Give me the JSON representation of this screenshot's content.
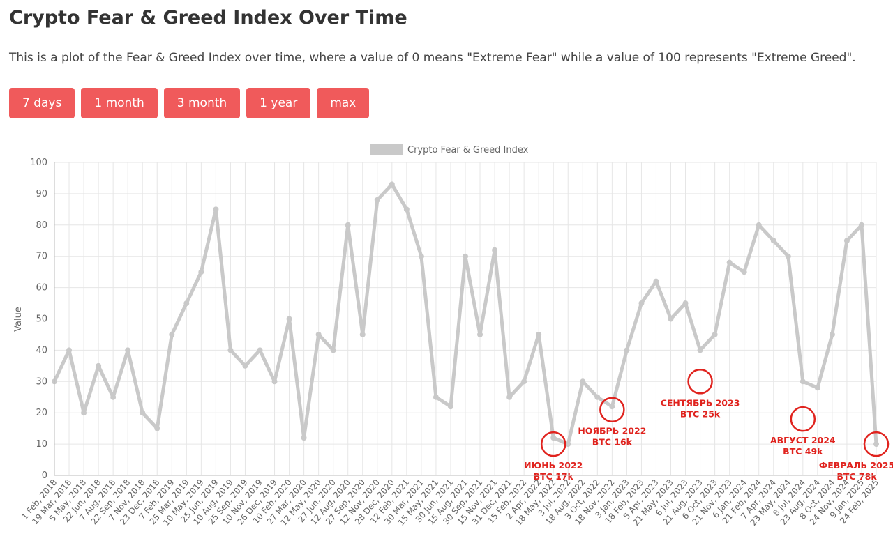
{
  "header": {
    "title": "Crypto Fear & Greed Index Over Time",
    "description": "This is a plot of the Fear & Greed Index over time, where a value of 0 means \"Extreme Fear\" while a value of 100 represents \"Extreme Greed\"."
  },
  "range_buttons": [
    {
      "label": "7 days"
    },
    {
      "label": "1 month"
    },
    {
      "label": "3 month"
    },
    {
      "label": "1 year"
    },
    {
      "label": "max"
    }
  ],
  "colors": {
    "button": "#f05a5b",
    "series": "#c9c9c9",
    "grid": "#e6e6e6",
    "annotation": "#e0231e"
  },
  "chart_data": {
    "type": "line",
    "ylabel": "Value",
    "ylim": [
      0,
      100
    ],
    "yticks": [
      0,
      10,
      20,
      30,
      40,
      50,
      60,
      70,
      80,
      90,
      100
    ],
    "grid": true,
    "legend_position": "top-center",
    "x_ticks": [
      "1 Feb, 2018",
      "19 Mar, 2018",
      "5 May, 2018",
      "22 Jun, 2018",
      "7 Aug, 2018",
      "22 Sep, 2018",
      "7 Nov, 2018",
      "23 Dec, 2018",
      "7 Feb, 2019",
      "25 Mar, 2019",
      "10 May, 2019",
      "25 Jun, 2019",
      "10 Aug, 2019",
      "25 Sep, 2019",
      "10 Nov, 2019",
      "26 Dec, 2019",
      "10 Feb, 2020",
      "27 Mar, 2020",
      "12 May, 2020",
      "27 Jun, 2020",
      "12 Aug, 2020",
      "27 Sep, 2020",
      "12 Nov, 2020",
      "28 Dec, 2020",
      "12 Feb, 2021",
      "30 Mar, 2021",
      "15 May, 2021",
      "30 Jun, 2021",
      "15 Aug, 2021",
      "30 Sep, 2021",
      "15 Nov, 2021",
      "31 Dec, 2021",
      "15 Feb, 2022",
      "2 Apr, 2022",
      "18 May, 2022",
      "3 Jul, 2022",
      "18 Aug, 2022",
      "3 Oct, 2022",
      "18 Nov, 2022",
      "3 Jan, 2023",
      "18 Feb, 2023",
      "5 Apr, 2023",
      "21 May, 2023",
      "6 Jul, 2023",
      "21 Aug, 2023",
      "6 Oct, 2023",
      "21 Nov, 2023",
      "6 Jan, 2024",
      "21 Feb, 2024",
      "7 Apr, 2024",
      "23 May, 2024",
      "8 Jul, 2024",
      "23 Aug, 2024",
      "8 Oct, 2024",
      "24 Nov, 2024",
      "9 Jan, 2025",
      "24 Feb, 2025"
    ],
    "series": [
      {
        "name": "Crypto Fear & Greed Index",
        "x": [
          "1 Feb, 2018",
          "19 Mar, 2018",
          "5 May, 2018",
          "22 Jun, 2018",
          "7 Aug, 2018",
          "22 Sep, 2018",
          "7 Nov, 2018",
          "23 Dec, 2018",
          "7 Feb, 2019",
          "25 Mar, 2019",
          "10 May, 2019",
          "25 Jun, 2019",
          "10 Aug, 2019",
          "25 Sep, 2019",
          "10 Nov, 2019",
          "26 Dec, 2019",
          "10 Feb, 2020",
          "27 Mar, 2020",
          "12 May, 2020",
          "27 Jun, 2020",
          "12 Aug, 2020",
          "27 Sep, 2020",
          "12 Nov, 2020",
          "28 Dec, 2020",
          "12 Feb, 2021",
          "30 Mar, 2021",
          "15 May, 2021",
          "30 Jun, 2021",
          "15 Aug, 2021",
          "30 Sep, 2021",
          "15 Nov, 2021",
          "31 Dec, 2021",
          "15 Feb, 2022",
          "2 Apr, 2022",
          "18 May, 2022",
          "3 Jul, 2022",
          "18 Aug, 2022",
          "3 Oct, 2022",
          "18 Nov, 2022",
          "3 Jan, 2023",
          "18 Feb, 2023",
          "5 Apr, 2023",
          "21 May, 2023",
          "6 Jul, 2023",
          "21 Aug, 2023",
          "6 Oct, 2023",
          "21 Nov, 2023",
          "6 Jan, 2024",
          "21 Feb, 2024",
          "7 Apr, 2024",
          "23 May, 2024",
          "8 Jul, 2024",
          "23 Aug, 2024",
          "8 Oct, 2024",
          "24 Nov, 2024",
          "9 Jan, 2025",
          "24 Feb, 2025"
        ],
        "values": [
          30,
          40,
          20,
          35,
          25,
          40,
          20,
          15,
          45,
          55,
          65,
          85,
          40,
          35,
          40,
          30,
          50,
          12,
          45,
          40,
          80,
          45,
          88,
          93,
          85,
          70,
          25,
          22,
          70,
          45,
          72,
          25,
          30,
          45,
          12,
          10,
          30,
          25,
          22,
          40,
          55,
          62,
          50,
          55,
          40,
          45,
          68,
          65,
          80,
          75,
          70,
          30,
          28,
          45,
          75,
          80,
          10
        ]
      }
    ],
    "annotations": [
      {
        "line1": "ИЮНЬ 2022",
        "line2": "BTC 17k",
        "x": "18 May, 2022",
        "y": 10
      },
      {
        "line1": "НОЯБРЬ 2022",
        "line2": "BTC 16k",
        "x": "18 Nov, 2022",
        "y": 21
      },
      {
        "line1": "СЕНТЯБРЬ 2023",
        "line2": "BTC 25k",
        "x": "21 Aug, 2023",
        "y": 30
      },
      {
        "line1": "АВГУСТ 2024",
        "line2": "BTC 49k",
        "x": "8 Jul, 2024",
        "y": 18
      },
      {
        "line1": "ФЕВРАЛЬ 2025",
        "line2": "BTC 78k",
        "x": "24 Feb, 2025",
        "y": 10
      }
    ]
  }
}
